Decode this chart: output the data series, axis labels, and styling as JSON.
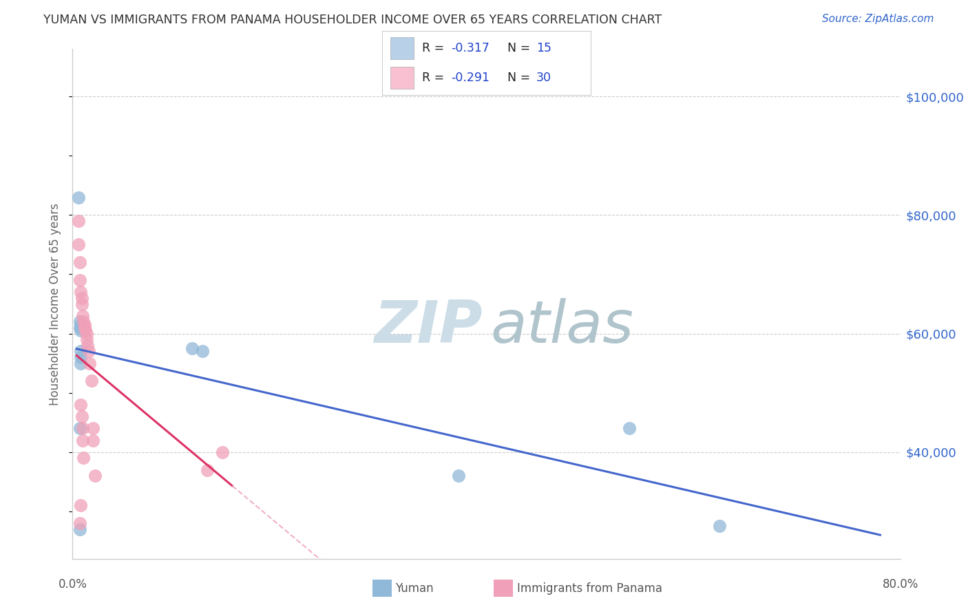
{
  "title": "YUMAN VS IMMIGRANTS FROM PANAMA HOUSEHOLDER INCOME OVER 65 YEARS CORRELATION CHART",
  "source": "Source: ZipAtlas.com",
  "ylabel": "Householder Income Over 65 years",
  "watermark_zip": "ZIP",
  "watermark_atlas": "atlas",
  "yaxis_labels": [
    "$100,000",
    "$80,000",
    "$60,000",
    "$40,000"
  ],
  "yaxis_values": [
    100000,
    80000,
    60000,
    40000
  ],
  "ylim": [
    22000,
    108000
  ],
  "xlim": [
    -0.004,
    0.82
  ],
  "legend_r1": "-0.317",
  "legend_n1": "15",
  "legend_r2": "-0.291",
  "legend_n2": "30",
  "legend_color1": "#b8d0e8",
  "legend_color2": "#f8c0d0",
  "blue_color": "#90b8d8",
  "pink_color": "#f0a0b8",
  "line_blue": "#4466cc",
  "line_pink": "#dd3366",
  "line_pink_dashed_color": "#f0b0c8",
  "yuman_x": [
    0.002,
    0.003,
    0.003,
    0.004,
    0.004,
    0.004,
    0.004,
    0.004,
    0.115,
    0.125,
    0.38,
    0.55,
    0.64,
    0.003,
    0.003
  ],
  "yuman_y": [
    83000,
    62000,
    61000,
    61500,
    60500,
    57000,
    56000,
    55000,
    57500,
    57000,
    36000,
    44000,
    27500,
    44000,
    27000
  ],
  "panama_x": [
    0.002,
    0.002,
    0.003,
    0.004,
    0.005,
    0.005,
    0.006,
    0.007,
    0.008,
    0.008,
    0.009,
    0.01,
    0.01,
    0.011,
    0.012,
    0.013,
    0.015,
    0.016,
    0.016,
    0.018,
    0.003,
    0.13,
    0.145,
    0.004,
    0.005,
    0.006,
    0.006,
    0.007,
    0.004,
    0.003
  ],
  "panama_y": [
    79000,
    75000,
    72000,
    67000,
    66000,
    65000,
    63000,
    62000,
    61500,
    61000,
    60500,
    60000,
    59000,
    58000,
    57000,
    55000,
    52000,
    44000,
    42000,
    36000,
    69000,
    37000,
    40000,
    48000,
    46000,
    44000,
    42000,
    39000,
    31000,
    28000
  ]
}
